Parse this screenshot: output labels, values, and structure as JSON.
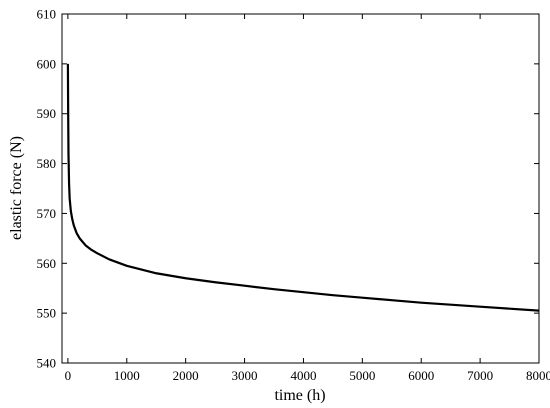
{
  "chart_data": {
    "type": "line",
    "xlabel": "time (h)",
    "ylabel": "elastic force (N)",
    "xlim": [
      -100,
      8000
    ],
    "ylim": [
      540,
      610
    ],
    "x_ticks": [
      0,
      1000,
      2000,
      3000,
      4000,
      5000,
      6000,
      7000,
      8000
    ],
    "y_ticks": [
      540,
      550,
      560,
      570,
      580,
      590,
      600,
      610
    ],
    "grid": false,
    "legend": "none",
    "line_color": "#000000",
    "series": [
      {
        "x": [
          0,
          5,
          10,
          20,
          30,
          50,
          75,
          100,
          150,
          200,
          300,
          400,
          500,
          700,
          1000,
          1500,
          2000,
          2500,
          3000,
          3500,
          4000,
          4500,
          5000,
          5500,
          6000,
          6500,
          7000,
          7500,
          8000
        ],
        "y": [
          600,
          590,
          582,
          576,
          573,
          570.5,
          568.8,
          567.6,
          566,
          565,
          563.6,
          562.7,
          562,
          560.8,
          559.5,
          558,
          557,
          556.2,
          555.5,
          554.8,
          554.2,
          553.6,
          553.1,
          552.6,
          552.1,
          551.7,
          551.3,
          550.9,
          550.5
        ]
      }
    ]
  }
}
